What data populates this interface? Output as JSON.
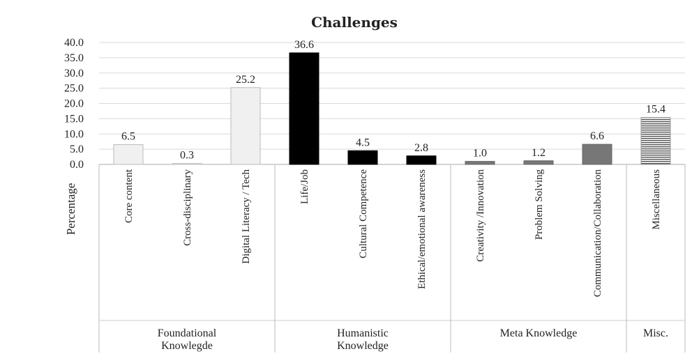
{
  "chart_data": {
    "type": "bar",
    "title": "Challenges",
    "ylabel": "Percentage",
    "xlabel": "",
    "ylim": [
      0,
      40
    ],
    "yticks": [
      "0.0",
      "5.0",
      "10.0",
      "15.0",
      "20.0",
      "25.0",
      "30.0",
      "35.0",
      "40.0"
    ],
    "grid": true,
    "categories": [
      "Core content",
      "Cross-disciplinary",
      "Digital Literacy / Tech",
      "Life/Job",
      "Cultural Competence",
      "Ethical/emotional awareness",
      "Creativity /Innovation",
      "Problem Solving",
      "Communication/Collaboration",
      "Miscellaneous"
    ],
    "values": [
      6.5,
      0.3,
      25.2,
      36.6,
      4.5,
      2.8,
      1.0,
      1.2,
      6.6,
      15.4
    ],
    "value_labels": [
      "6.5",
      "0.3",
      "25.2",
      "36.6",
      "4.5",
      "2.8",
      "1.0",
      "1.2",
      "6.6",
      "15.4"
    ],
    "groups": [
      {
        "lines": [
          "Foundational",
          "Knowlegde"
        ],
        "start": 0,
        "end": 2,
        "fill": "#f0f0f0",
        "stroke": "#bbbbbb",
        "pattern": "none"
      },
      {
        "lines": [
          "Humanistic",
          "Knowledge"
        ],
        "start": 3,
        "end": 5,
        "fill": "#000000",
        "stroke": "#000000",
        "pattern": "none"
      },
      {
        "lines": [
          "Meta Knowledge"
        ],
        "start": 6,
        "end": 8,
        "fill": "#777777",
        "stroke": "#666666",
        "pattern": "none"
      },
      {
        "lines": [
          "Misc."
        ],
        "start": 9,
        "end": 9,
        "fill": "#ffffff",
        "stroke": "#999999",
        "pattern": "horizontal-lines"
      }
    ]
  }
}
